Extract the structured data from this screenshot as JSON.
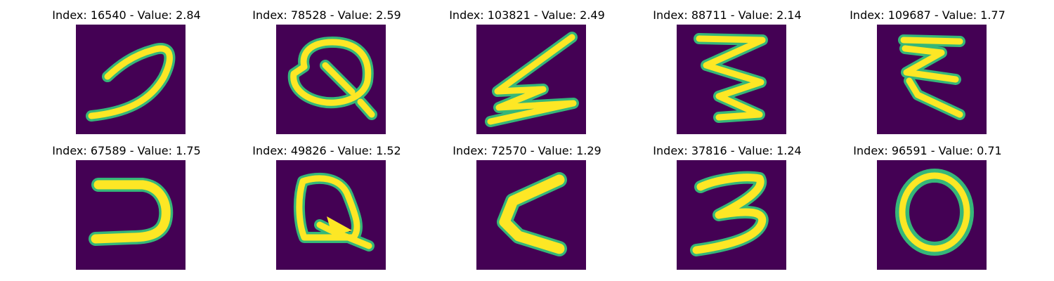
{
  "colors": {
    "background": "#440154",
    "stroke_outer": "#35b779",
    "stroke_inner": "#fde725"
  },
  "panels": [
    {
      "title": "Index: 16540 - Value: 2.84",
      "glyph": "hook-stroke"
    },
    {
      "title": "Index: 78528 - Value: 2.59",
      "glyph": "looped-Q"
    },
    {
      "title": "Index: 103821 - Value: 2.49",
      "glyph": "zigzag"
    },
    {
      "title": "Index: 88711 - Value: 2.14",
      "glyph": "Z-zigzag"
    },
    {
      "title": "Index: 109687 - Value: 1.77",
      "glyph": "E-shape"
    },
    {
      "title": "Index: 67589 - Value: 1.75",
      "glyph": "reversed-C"
    },
    {
      "title": "Index: 49826 - Value: 1.52",
      "glyph": "Q-shape"
    },
    {
      "title": "Index: 72570 - Value: 1.29",
      "glyph": "less-than"
    },
    {
      "title": "Index: 37816 - Value: 1.24",
      "glyph": "three"
    },
    {
      "title": "Index: 96591 - Value: 0.71",
      "glyph": "zero"
    }
  ]
}
